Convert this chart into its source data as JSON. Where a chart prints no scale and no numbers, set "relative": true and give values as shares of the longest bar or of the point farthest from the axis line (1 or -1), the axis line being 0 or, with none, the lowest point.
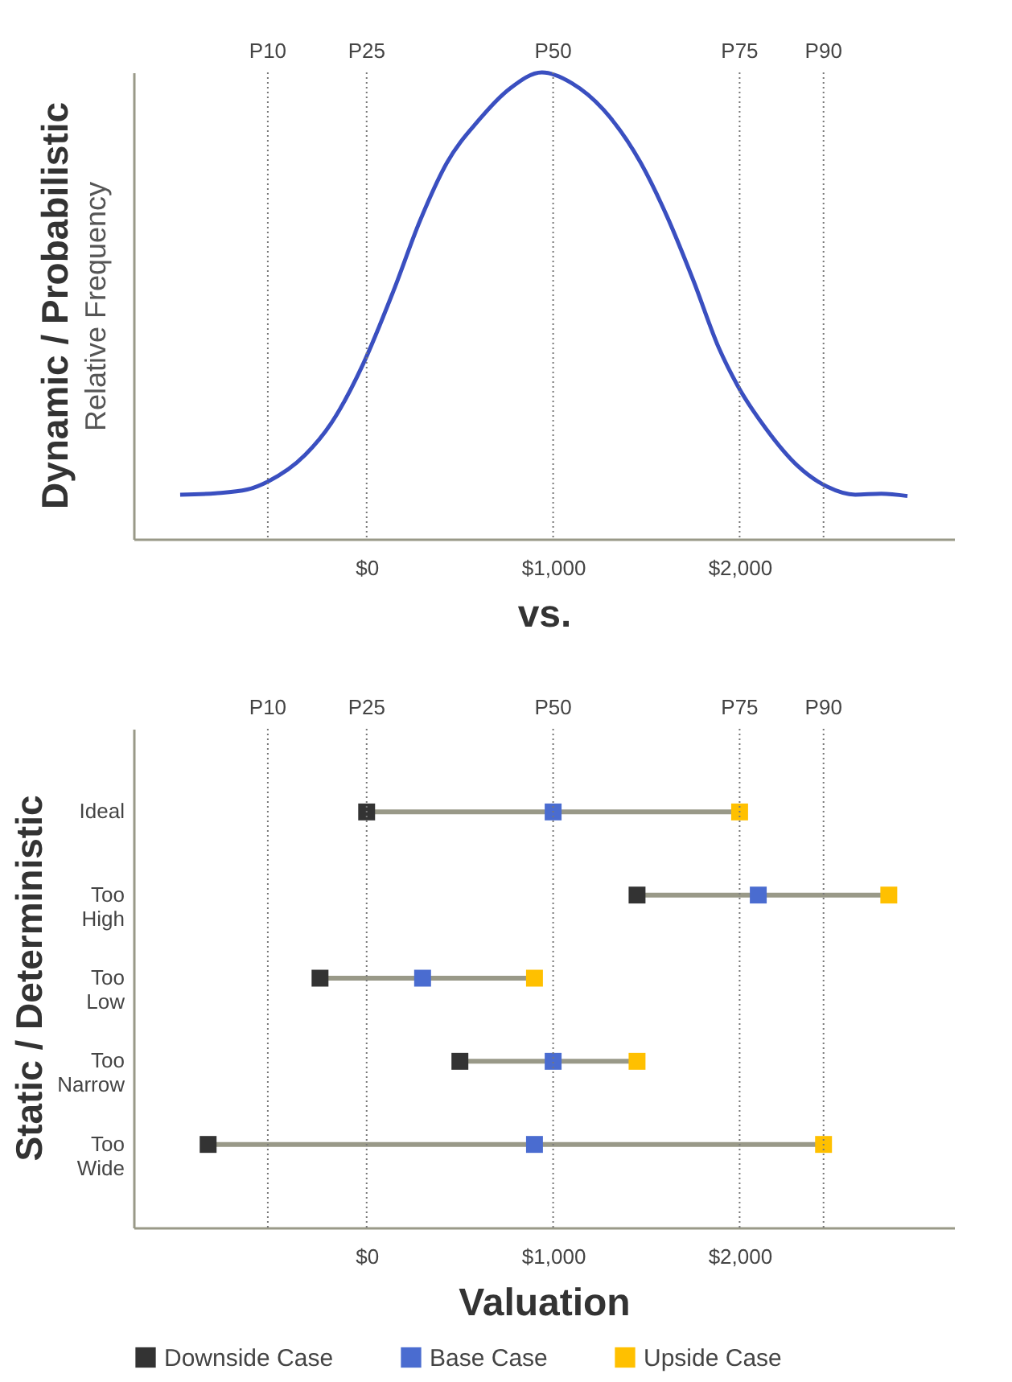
{
  "chart_data": [
    {
      "type": "line",
      "title": "Dynamic / Probabilistic",
      "ylabel": "Relative Frequency",
      "xlabel": "vs.",
      "relative": true,
      "x": [
        -1000,
        -810,
        -640,
        -530,
        -330,
        -190,
        -20,
        145,
        285,
        430,
        600,
        770,
        940,
        1100,
        1270,
        1470,
        1610,
        1750,
        1890,
        1990,
        2140,
        2310,
        2470,
        2620,
        2760,
        2900
      ],
      "series": [
        {
          "color": "#3a4fc0",
          "values": [
            0.095,
            0.098,
            0.106,
            0.123,
            0.18,
            0.248,
            0.374,
            0.533,
            0.681,
            0.806,
            0.897,
            0.966,
            1.0,
            0.977,
            0.92,
            0.806,
            0.692,
            0.556,
            0.408,
            0.328,
            0.237,
            0.157,
            0.112,
            0.095,
            0.097,
            0.092
          ]
        }
      ],
      "xlim": [
        -1250,
        3150
      ],
      "xticks": [
        {
          "value": 0,
          "label": "$0"
        },
        {
          "value": 1000,
          "label": "$1,000"
        },
        {
          "value": 2000,
          "label": "$2,000"
        }
      ],
      "ref_lines": [
        {
          "axis": "x",
          "value": -530,
          "label": "P10",
          "line_style": "dotted",
          "color": "#777777"
        },
        {
          "axis": "x",
          "value": 0,
          "label": "P25",
          "line_style": "dotted",
          "color": "#777777"
        },
        {
          "axis": "x",
          "value": 1000,
          "label": "P50",
          "line_style": "dotted",
          "color": "#777777"
        },
        {
          "axis": "x",
          "value": 2000,
          "label": "P75",
          "line_style": "dotted",
          "color": "#777777"
        },
        {
          "axis": "x",
          "value": 2450,
          "label": "P90",
          "line_style": "dotted",
          "color": "#777777"
        }
      ],
      "grid": false,
      "marker": "none",
      "line_style": "solid"
    },
    {
      "type": "scatter",
      "orientation": "horizontal",
      "title": "Static / Deterministic",
      "xlabel": "Valuation",
      "categories": [
        "Ideal",
        "Too High",
        "Too Low",
        "Too Narrow",
        "Too Wide"
      ],
      "series": [
        {
          "name": "Downside Case",
          "color": "#333333",
          "values": [
            0,
            1450,
            -250,
            500,
            -850
          ]
        },
        {
          "name": "Base Case",
          "color": "#4a6cd0",
          "values": [
            1000,
            2100,
            300,
            1000,
            900
          ]
        },
        {
          "name": "Upside Case",
          "color": "#ffc000",
          "values": [
            2000,
            2800,
            900,
            1450,
            2450
          ]
        }
      ],
      "xlim": [
        -1250,
        3150
      ],
      "xticks": [
        {
          "value": 0,
          "label": "$0"
        },
        {
          "value": 1000,
          "label": "$1,000"
        },
        {
          "value": 2000,
          "label": "$2,000"
        }
      ],
      "ref_lines": [
        {
          "axis": "x",
          "value": -530,
          "label": "P10",
          "line_style": "dotted",
          "color": "#777777"
        },
        {
          "axis": "x",
          "value": 0,
          "label": "P25",
          "line_style": "dotted",
          "color": "#777777"
        },
        {
          "axis": "x",
          "value": 1000,
          "label": "P50",
          "line_style": "dotted",
          "color": "#777777"
        },
        {
          "axis": "x",
          "value": 2000,
          "label": "P75",
          "line_style": "dotted",
          "color": "#777777"
        },
        {
          "axis": "x",
          "value": 2450,
          "label": "P90",
          "line_style": "dotted",
          "color": "#777777"
        }
      ],
      "grid": false,
      "marker": "square",
      "legend": "bottom"
    }
  ]
}
